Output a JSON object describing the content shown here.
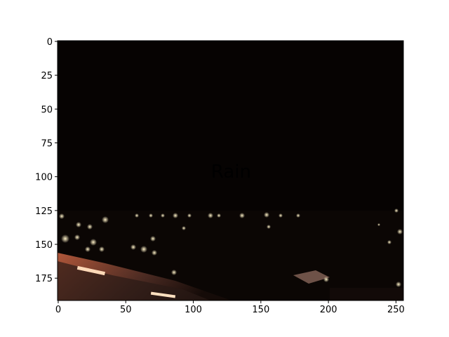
{
  "chart_data": {
    "type": "image",
    "xlim": [
      -0.5,
      255.5
    ],
    "ylim": [
      191.5,
      -0.5
    ],
    "xticks": [
      0,
      50,
      100,
      150,
      200,
      250
    ],
    "yticks": [
      0,
      25,
      50,
      75,
      100,
      125,
      150,
      175
    ],
    "annotation": {
      "text": "Rain",
      "x": 128,
      "y": 96,
      "color": "red"
    }
  }
}
